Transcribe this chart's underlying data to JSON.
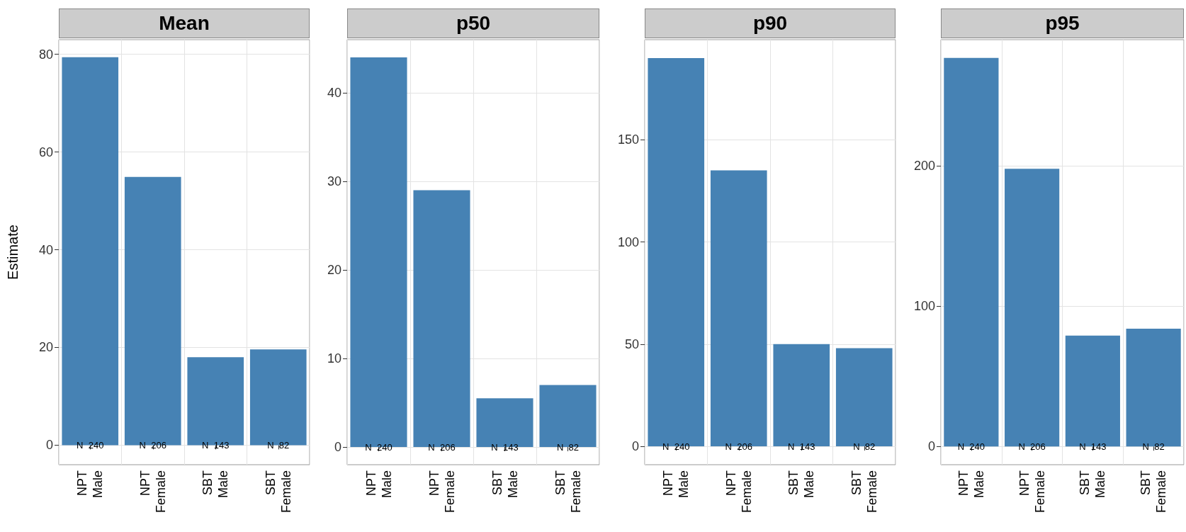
{
  "chart_data": [
    {
      "type": "bar",
      "title": "Mean",
      "ylabel": "Estimate",
      "categories": [
        "NPT\nMale",
        "NPT\nFemale",
        "SBT\nMale",
        "SBT\nFemale"
      ],
      "values": [
        79.4,
        54.9,
        18.0,
        19.6
      ],
      "color": "#4682b4",
      "ylim": [
        -4,
        83
      ],
      "yticks": [
        0,
        20,
        40,
        60,
        80
      ],
      "grid": true,
      "annotations": [
        {
          "text": "N  240",
          "x": "NPT\nMale",
          "y": 0
        },
        {
          "text": "N  206",
          "x": "NPT\nFemale",
          "y": 0
        },
        {
          "text": "N  143",
          "x": "SBT\nMale",
          "y": 0
        },
        {
          "text": "N  82",
          "x": "SBT\nFemale",
          "y": 0
        }
      ]
    },
    {
      "type": "bar",
      "title": "p50",
      "categories": [
        "NPT\nMale",
        "NPT\nFemale",
        "SBT\nMale",
        "SBT\nFemale"
      ],
      "values": [
        44,
        29,
        5.5,
        7
      ],
      "color": "#4682b4",
      "ylim": [
        -2,
        46
      ],
      "yticks": [
        0,
        10,
        20,
        30,
        40
      ],
      "grid": true,
      "annotations": [
        {
          "text": "N  240",
          "x": "NPT\nMale",
          "y": 0
        },
        {
          "text": "N  206",
          "x": "NPT\nFemale",
          "y": 0
        },
        {
          "text": "N  143",
          "x": "SBT\nMale",
          "y": 0
        },
        {
          "text": "N  82",
          "x": "SBT\nFemale",
          "y": 0
        }
      ]
    },
    {
      "type": "bar",
      "title": "p90",
      "categories": [
        "NPT\nMale",
        "NPT\nFemale",
        "SBT\nMale",
        "SBT\nFemale"
      ],
      "values": [
        190,
        135,
        50,
        48
      ],
      "color": "#4682b4",
      "ylim": [
        -9,
        199
      ],
      "yticks": [
        0,
        50,
        100,
        150
      ],
      "grid": true,
      "annotations": [
        {
          "text": "N  240",
          "x": "NPT\nMale",
          "y": 0
        },
        {
          "text": "N  206",
          "x": "NPT\nFemale",
          "y": 0
        },
        {
          "text": "N  143",
          "x": "SBT\nMale",
          "y": 0
        },
        {
          "text": "N  82",
          "x": "SBT\nFemale",
          "y": 0
        }
      ]
    },
    {
      "type": "bar",
      "title": "p95",
      "categories": [
        "NPT\nMale",
        "NPT\nFemale",
        "SBT\nMale",
        "SBT\nFemale"
      ],
      "values": [
        277,
        198,
        79,
        84
      ],
      "color": "#4682b4",
      "ylim": [
        -13,
        290
      ],
      "yticks": [
        0,
        100,
        200
      ],
      "grid": true,
      "annotations": [
        {
          "text": "N  240",
          "x": "NPT\nMale",
          "y": 0
        },
        {
          "text": "N  206",
          "x": "NPT\nFemale",
          "y": 0
        },
        {
          "text": "N  143",
          "x": "SBT\nMale",
          "y": 0
        },
        {
          "text": "N  82",
          "x": "SBT\nFemale",
          "y": 0
        }
      ]
    }
  ]
}
